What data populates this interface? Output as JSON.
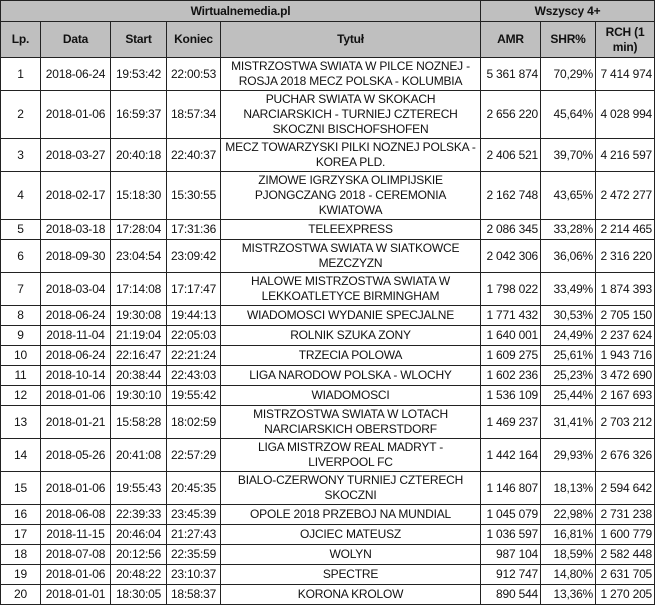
{
  "header": {
    "source": "Wirtualnemedia.pl",
    "group": "Wszyscy 4+",
    "columns": [
      "Lp.",
      "Data",
      "Start",
      "Koniec",
      "Tytuł",
      "AMR",
      "SHR%",
      "RCH (1 min)"
    ]
  },
  "colors": {
    "header_bg": "#bfbfbf",
    "border": "#222222"
  },
  "rows": [
    [
      "1",
      "2018-06-24",
      "19:53:42",
      "22:00:53",
      "MISTRZOSTWA SWIATA W PILCE NOZNEJ - ROSJA 2018 MECZ POLSKA - KOLUMBIA",
      "5 361 874",
      "70,29%",
      "7 414 974"
    ],
    [
      "2",
      "2018-01-06",
      "16:59:37",
      "18:57:34",
      "PUCHAR SWIATA W SKOKACH NARCIARSKICH - TURNIEJ CZTERECH SKOCZNI BISCHOFSHOFEN",
      "2 656 220",
      "45,64%",
      "4 028 994"
    ],
    [
      "3",
      "2018-03-27",
      "20:40:18",
      "22:40:37",
      "MECZ TOWARZYSKI PILKI NOZNEJ POLSKA - KOREA PLD.",
      "2 406 521",
      "39,70%",
      "4 216 597"
    ],
    [
      "4",
      "2018-02-17",
      "15:18:30",
      "15:30:55",
      "ZIMOWE IGRZYSKA OLIMPIJSKIE PJONGCZANG 2018 - CEREMONIA KWIATOWA",
      "2 162 748",
      "43,65%",
      "2 472 277"
    ],
    [
      "5",
      "2018-03-18",
      "17:28:04",
      "17:31:36",
      "TELEEXPRESS",
      "2 086 345",
      "33,28%",
      "2 214 465"
    ],
    [
      "6",
      "2018-09-30",
      "23:04:54",
      "23:09:42",
      "MISTRZOSTWA SWIATA W SIATKOWCE MEZCZYZN",
      "2 042 306",
      "36,06%",
      "2 316 220"
    ],
    [
      "7",
      "2018-03-04",
      "17:14:08",
      "17:17:47",
      "HALOWE MISTRZOSTWA SWIATA W LEKKOATLETYCE BIRMINGHAM",
      "1 798 022",
      "33,49%",
      "1 874 393"
    ],
    [
      "8",
      "2018-06-24",
      "19:30:08",
      "19:44:13",
      "WIADOMOSCI WYDANIE SPECJALNE",
      "1 771 432",
      "30,53%",
      "2 705 150"
    ],
    [
      "9",
      "2018-11-04",
      "21:19:04",
      "22:05:03",
      "ROLNIK SZUKA ZONY",
      "1 640 001",
      "24,49%",
      "2 237 624"
    ],
    [
      "10",
      "2018-06-24",
      "22:16:47",
      "22:21:24",
      "TRZECIA POLOWA",
      "1 609 275",
      "25,61%",
      "1 943 716"
    ],
    [
      "11",
      "2018-10-14",
      "20:38:44",
      "22:43:03",
      "LIGA NARODOW POLSKA - WLOCHY",
      "1 602 236",
      "25,23%",
      "3 472 690"
    ],
    [
      "12",
      "2018-01-06",
      "19:30:10",
      "19:55:42",
      "WIADOMOSCI",
      "1 536 109",
      "25,44%",
      "2 167 693"
    ],
    [
      "13",
      "2018-01-21",
      "15:58:28",
      "18:02:59",
      "MISTRZOSTWA SWIATA W LOTACH NARCIARSKICH OBERSTDORF",
      "1 469 237",
      "31,41%",
      "2 703 212"
    ],
    [
      "14",
      "2018-05-26",
      "20:41:08",
      "22:57:29",
      "LIGA MISTRZOW REAL MADRYT - LIVERPOOL FC",
      "1 442 164",
      "29,93%",
      "2 676 326"
    ],
    [
      "15",
      "2018-01-06",
      "19:55:43",
      "20:45:35",
      "BIALO-CZERWONY TURNIEJ CZTERECH SKOCZNI",
      "1 146 807",
      "18,13%",
      "2 594 642"
    ],
    [
      "16",
      "2018-06-08",
      "22:39:33",
      "23:45:39",
      "OPOLE 2018 PRZEBOJ NA MUNDIAL",
      "1 045 079",
      "22,98%",
      "2 731 238"
    ],
    [
      "17",
      "2018-11-15",
      "20:46:04",
      "21:27:43",
      "OJCIEC MATEUSZ",
      "1 036 597",
      "16,81%",
      "1 600 779"
    ],
    [
      "18",
      "2018-07-08",
      "20:12:56",
      "22:35:59",
      "WOLYN",
      "987 104",
      "18,59%",
      "2 582 448"
    ],
    [
      "19",
      "2018-01-06",
      "20:48:22",
      "23:10:37",
      "SPECTRE",
      "912 747",
      "14,80%",
      "2 631 705"
    ],
    [
      "20",
      "2018-01-01",
      "18:30:05",
      "18:58:37",
      "KORONA KROLOW",
      "890 544",
      "13,36%",
      "1 270 205"
    ]
  ]
}
